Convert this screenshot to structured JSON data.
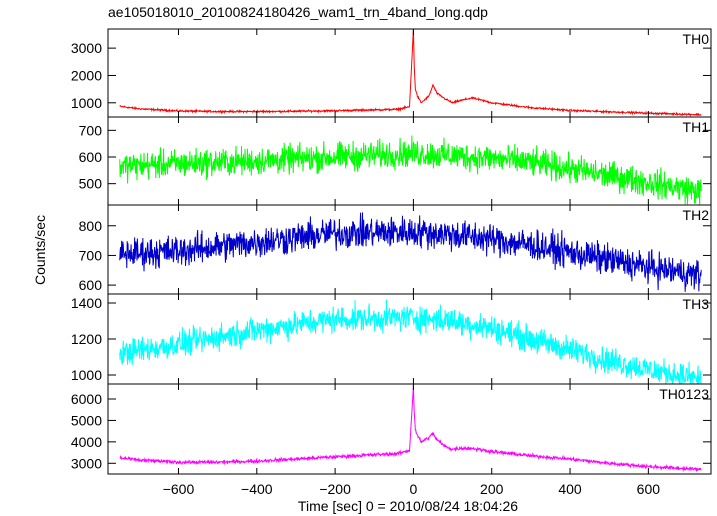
{
  "chart_data": {
    "type": "line",
    "title": "ae105018010_20100824180426_wam1_trn_4band_long.qdp",
    "xlabel": "Time [sec] 0 = 2010/08/24 18:04:26",
    "ylabel": "Counts/sec",
    "xlim": [
      -780,
      760
    ],
    "x_ticks": [
      -600,
      -400,
      -200,
      0,
      200,
      400,
      600
    ],
    "x_tick_labels": [
      "−600",
      "−400",
      "−200",
      "0",
      "200",
      "400",
      "600"
    ],
    "x_data_range": [
      -750,
      735
    ],
    "grid": false,
    "series": [
      {
        "name": "TH0",
        "color": "#ff0000",
        "ylim": [
          480,
          3700
        ],
        "y_ticks": [
          1000,
          2000,
          3000
        ],
        "x": [
          -750,
          -700,
          -600,
          -500,
          -400,
          -300,
          -200,
          -100,
          -40,
          -10,
          0,
          2,
          5,
          10,
          20,
          40,
          50,
          60,
          80,
          100,
          120,
          150,
          200,
          300,
          400,
          500,
          600,
          700,
          735
        ],
        "values": [
          870,
          780,
          700,
          680,
          680,
          690,
          710,
          740,
          760,
          850,
          3700,
          2400,
          1500,
          1250,
          1000,
          1250,
          1650,
          1350,
          1150,
          1000,
          1080,
          1180,
          1000,
          820,
          720,
          670,
          620,
          580,
          560
        ],
        "noise": 25
      },
      {
        "name": "TH1",
        "color": "#00ff00",
        "ylim": [
          420,
          750
        ],
        "y_ticks": [
          500,
          600,
          700
        ],
        "x": [
          -750,
          -600,
          -400,
          -200,
          0,
          100,
          200,
          300,
          400,
          500,
          600,
          700,
          735
        ],
        "values": [
          565,
          575,
          585,
          600,
          615,
          605,
          595,
          580,
          555,
          530,
          505,
          480,
          470
        ],
        "noise": 40
      },
      {
        "name": "TH2",
        "color": "#0000cc",
        "ylim": [
          570,
          870
        ],
        "y_ticks": [
          600,
          700,
          800
        ],
        "x": [
          -750,
          -600,
          -400,
          -200,
          0,
          100,
          200,
          300,
          400,
          500,
          600,
          700,
          735
        ],
        "values": [
          705,
          715,
          745,
          775,
          780,
          770,
          755,
          735,
          710,
          685,
          660,
          640,
          630
        ],
        "noise": 40
      },
      {
        "name": "TH3",
        "color": "#00ffff",
        "ylim": [
          950,
          1450
        ],
        "y_ticks": [
          1000,
          1200,
          1400
        ],
        "x": [
          -750,
          -600,
          -400,
          -200,
          0,
          100,
          200,
          300,
          400,
          500,
          600,
          700,
          735
        ],
        "values": [
          1120,
          1170,
          1250,
          1310,
          1320,
          1300,
          1260,
          1200,
          1140,
          1080,
          1030,
          990,
          980
        ],
        "noise": 55
      },
      {
        "name": "TH0123",
        "color": "#ff00ff",
        "ylim": [
          2500,
          6700
        ],
        "y_ticks": [
          3000,
          4000,
          5000,
          6000
        ],
        "x": [
          -750,
          -700,
          -600,
          -500,
          -400,
          -300,
          -200,
          -100,
          -40,
          -10,
          0,
          2,
          5,
          10,
          20,
          40,
          50,
          60,
          80,
          100,
          120,
          150,
          200,
          300,
          400,
          500,
          600,
          700,
          735
        ],
        "values": [
          3250,
          3150,
          3050,
          3050,
          3100,
          3200,
          3300,
          3400,
          3450,
          3600,
          6600,
          5400,
          4600,
          4300,
          4000,
          4200,
          4400,
          4100,
          3800,
          3650,
          3700,
          3700,
          3550,
          3350,
          3200,
          3000,
          2850,
          2750,
          2700
        ],
        "noise": 60
      }
    ]
  }
}
